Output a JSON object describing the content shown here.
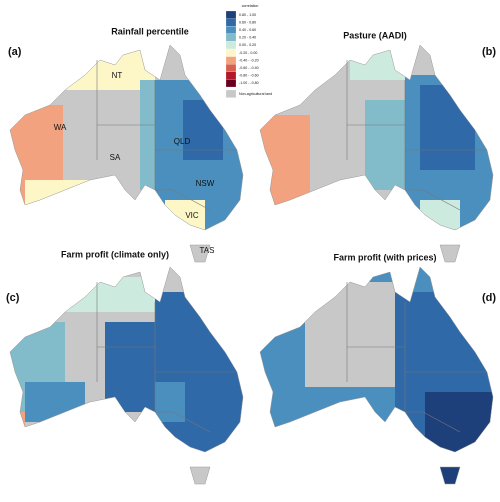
{
  "panels": [
    {
      "label": "(a)",
      "title": "Rainfall percentile"
    },
    {
      "label": "(b)",
      "title": "Pasture (AADI)"
    },
    {
      "label": "(c)",
      "title": "Farm profit (climate only)"
    },
    {
      "label": "(d)",
      "title": "Farm profit (with prices)"
    }
  ],
  "states": [
    "NT",
    "WA",
    "SA",
    "QLD",
    "NSW",
    "VIC",
    "TAS"
  ],
  "legend": {
    "title": "correlation",
    "items": [
      {
        "label": "0.80 - 1.00",
        "color": "#1d3f7a"
      },
      {
        "label": "0.60 - 0.80",
        "color": "#2f69a8"
      },
      {
        "label": "0.40 - 0.60",
        "color": "#4b8fbf"
      },
      {
        "label": "0.20 - 0.40",
        "color": "#82bccb"
      },
      {
        "label": "0.00 - 0.20",
        "color": "#cdeadf"
      },
      {
        "label": "-0.20 - 0.00",
        "color": "#fdf7c8"
      },
      {
        "label": "-0.40 - -0.20",
        "color": "#f2a27e"
      },
      {
        "label": "-0.60 - -0.40",
        "color": "#d8604c"
      },
      {
        "label": "-0.80 - -0.60",
        "color": "#b2182b"
      },
      {
        "label": "-1.00 - -0.80",
        "color": "#67001f"
      },
      {
        "label": "Non-agricultural land",
        "color": "#c8c8c8"
      }
    ]
  }
}
